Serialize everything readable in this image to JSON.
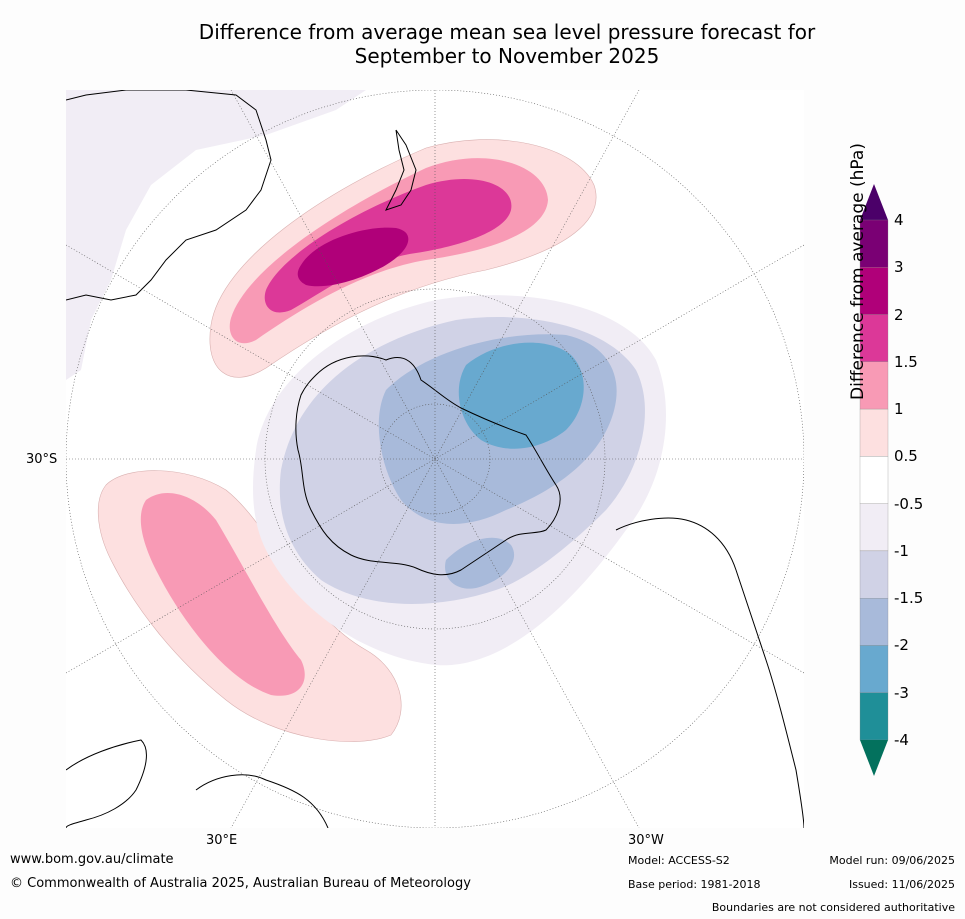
{
  "title": {
    "line1": "Difference from average mean sea level pressure forecast for",
    "line2": "September to November 2025"
  },
  "map": {
    "projection": "south-polar-stereographic",
    "lat_label": "30°S",
    "lon_labels": {
      "east": "30°E",
      "west": "30°W"
    }
  },
  "colorbar": {
    "label": "Difference from average (hPa)",
    "ticks": [
      "4",
      "3",
      "2",
      "1.5",
      "1",
      "0.5",
      "-0.5",
      "-1",
      "-1.5",
      "-2",
      "-3",
      "-4"
    ],
    "colors": [
      "#4b0069",
      "#7a0074",
      "#b00079",
      "#dc3898",
      "#f89ab5",
      "#fde0e0",
      "#ffffff",
      "#f1edf5",
      "#d0d2e6",
      "#a8bada",
      "#68a9cf",
      "#1f8f98",
      "#03715d"
    ]
  },
  "footer": {
    "url": "www.bom.gov.au/climate",
    "copyright": "© Commonwealth of Australia 2025, Australian Bureau of Meteorology",
    "model": "Model: ACCESS-S2",
    "base_period": "Base period: 1981-2018",
    "model_run": "Model run: 09/06/2025",
    "issued": "Issued: 11/06/2025",
    "disclaimer": "Boundaries are not considered authoritative"
  }
}
